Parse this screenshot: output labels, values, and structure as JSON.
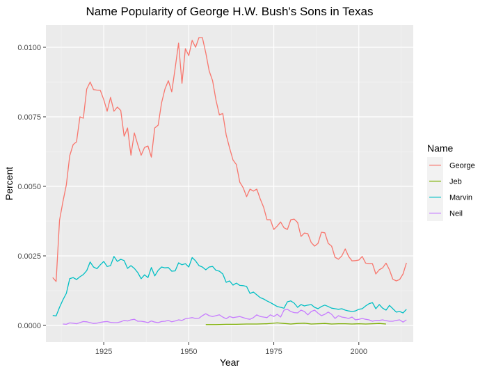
{
  "chart_data": {
    "type": "line",
    "title": "Name Popularity of George H.W. Bush's Sons in Texas",
    "xlabel": "Year",
    "ylabel": "Percent",
    "xlim": [
      1908,
      2016
    ],
    "ylim": [
      -0.0006,
      0.0108
    ],
    "x_ticks": [
      1925,
      1950,
      1975,
      2000
    ],
    "x_tick_labels": [
      "1925",
      "1950",
      "1975",
      "2000"
    ],
    "y_ticks": [
      0,
      0.0025,
      0.005,
      0.0075,
      0.01
    ],
    "y_tick_labels": [
      "0.0000",
      "0.0025",
      "0.0050",
      "0.0075",
      "0.0100"
    ],
    "grid": true,
    "legend_title": "Name",
    "legend_position": "right",
    "series": [
      {
        "name": "George",
        "color": "#F8766D",
        "x": [
          1910,
          1911,
          1912,
          1913,
          1914,
          1915,
          1916,
          1917,
          1918,
          1919,
          1920,
          1921,
          1922,
          1923,
          1924,
          1925,
          1926,
          1927,
          1928,
          1929,
          1930,
          1931,
          1932,
          1933,
          1934,
          1935,
          1936,
          1937,
          1938,
          1939,
          1940,
          1941,
          1942,
          1943,
          1944,
          1945,
          1946,
          1947,
          1948,
          1949,
          1950,
          1951,
          1952,
          1953,
          1954,
          1955,
          1956,
          1957,
          1958,
          1959,
          1960,
          1961,
          1962,
          1963,
          1964,
          1965,
          1966,
          1967,
          1968,
          1969,
          1970,
          1971,
          1972,
          1973,
          1974,
          1975,
          1976,
          1977,
          1978,
          1979,
          1980,
          1981,
          1982,
          1983,
          1984,
          1985,
          1986,
          1987,
          1988,
          1989,
          1990,
          1991,
          1992,
          1993,
          1994,
          1995,
          1996,
          1997,
          1998,
          1999,
          2000,
          2001,
          2002,
          2003,
          2004,
          2005,
          2006,
          2007,
          2008,
          2009,
          2010,
          2011,
          2012,
          2013,
          2014
        ],
        "values": [
          0.00172,
          0.00158,
          0.00378,
          0.00445,
          0.00505,
          0.0061,
          0.0065,
          0.0066,
          0.0075,
          0.00745,
          0.0085,
          0.00875,
          0.00848,
          0.00846,
          0.00845,
          0.00812,
          0.0077,
          0.0082,
          0.0077,
          0.00785,
          0.00773,
          0.0068,
          0.0071,
          0.00612,
          0.00692,
          0.0065,
          0.00612,
          0.0064,
          0.00645,
          0.00605,
          0.0071,
          0.0072,
          0.008,
          0.0085,
          0.0088,
          0.0084,
          0.00925,
          0.01015,
          0.0087,
          0.00995,
          0.0097,
          0.01025,
          0.01,
          0.01035,
          0.01035,
          0.0098,
          0.00915,
          0.0088,
          0.0081,
          0.00757,
          0.00762,
          0.00685,
          0.00638,
          0.00595,
          0.00578,
          0.00515,
          0.00495,
          0.00463,
          0.0049,
          0.00483,
          0.0049,
          0.00455,
          0.00425,
          0.0038,
          0.0038,
          0.00345,
          0.00357,
          0.00372,
          0.00351,
          0.00345,
          0.0038,
          0.00382,
          0.0037,
          0.0032,
          0.00332,
          0.0033,
          0.00298,
          0.00285,
          0.00295,
          0.00335,
          0.00333,
          0.00295,
          0.00285,
          0.00245,
          0.00238,
          0.0025,
          0.00275,
          0.00248,
          0.00232,
          0.00233,
          0.00235,
          0.00248,
          0.00224,
          0.00222,
          0.00222,
          0.00185,
          0.002,
          0.00207,
          0.00224,
          0.002,
          0.00166,
          0.0016,
          0.00165,
          0.00185,
          0.00225
        ]
      },
      {
        "name": "Jeb",
        "color": "#7CAE00",
        "x": [
          1955,
          1958,
          1961,
          1964,
          1967,
          1970,
          1973,
          1976,
          1978,
          1980,
          1982,
          1984,
          1986,
          1988,
          1990,
          1992,
          1994,
          1996,
          1998,
          2000,
          2002,
          2004,
          2006,
          2008
        ],
        "values": [
          3e-05,
          3e-05,
          4e-05,
          4e-05,
          5e-05,
          5e-05,
          6e-05,
          9e-05,
          7e-05,
          5e-05,
          7e-05,
          8e-05,
          5e-05,
          6e-05,
          7e-05,
          5e-05,
          6e-05,
          6e-05,
          5e-05,
          6e-05,
          5e-05,
          6e-05,
          7e-05,
          5e-05
        ]
      },
      {
        "name": "Marvin",
        "color": "#00BFC4",
        "x": [
          1910,
          1911,
          1912,
          1913,
          1914,
          1915,
          1916,
          1917,
          1918,
          1919,
          1920,
          1921,
          1922,
          1923,
          1924,
          1925,
          1926,
          1927,
          1928,
          1929,
          1930,
          1931,
          1932,
          1933,
          1934,
          1935,
          1936,
          1937,
          1938,
          1939,
          1940,
          1941,
          1942,
          1943,
          1944,
          1945,
          1946,
          1947,
          1948,
          1949,
          1950,
          1951,
          1952,
          1953,
          1954,
          1955,
          1956,
          1957,
          1958,
          1959,
          1960,
          1961,
          1962,
          1963,
          1964,
          1965,
          1966,
          1967,
          1968,
          1969,
          1970,
          1971,
          1972,
          1973,
          1974,
          1975,
          1976,
          1977,
          1978,
          1979,
          1980,
          1981,
          1982,
          1983,
          1984,
          1985,
          1986,
          1987,
          1988,
          1989,
          1990,
          1991,
          1992,
          1993,
          1994,
          1995,
          1996,
          1997,
          1998,
          1999,
          2000,
          2001,
          2002,
          2003,
          2004,
          2005,
          2006,
          2007,
          2008,
          2009,
          2010,
          2011,
          2012,
          2013,
          2014
        ],
        "values": [
          0.00036,
          0.00034,
          0.00065,
          0.00092,
          0.00115,
          0.00168,
          0.00172,
          0.00165,
          0.00175,
          0.00183,
          0.00197,
          0.00228,
          0.0021,
          0.00204,
          0.00218,
          0.0023,
          0.00212,
          0.00215,
          0.00248,
          0.0023,
          0.00238,
          0.00233,
          0.00205,
          0.00215,
          0.00205,
          0.0019,
          0.00168,
          0.00182,
          0.00172,
          0.00208,
          0.00178,
          0.00198,
          0.0021,
          0.00207,
          0.00208,
          0.00195,
          0.00196,
          0.00225,
          0.00218,
          0.00222,
          0.0021,
          0.00244,
          0.00232,
          0.00215,
          0.0021,
          0.002,
          0.0021,
          0.00212,
          0.00198,
          0.00195,
          0.00185,
          0.00155,
          0.0016,
          0.00145,
          0.00152,
          0.00144,
          0.00143,
          0.0014,
          0.00115,
          0.0012,
          0.0011,
          0.001,
          0.00095,
          0.00088,
          0.00082,
          0.00075,
          0.00068,
          0.00065,
          0.00062,
          0.00085,
          0.00088,
          0.0008,
          0.00065,
          0.00075,
          0.0007,
          0.00073,
          0.00075,
          0.00065,
          0.0006,
          0.00068,
          0.00073,
          0.00068,
          0.00062,
          0.0006,
          0.00058,
          0.0006,
          0.00055,
          0.00052,
          0.0005,
          0.00052,
          0.00058,
          0.0006,
          0.0007,
          0.00078,
          0.00082,
          0.0006,
          0.00075,
          0.00062,
          0.00055,
          0.00072,
          0.0006,
          0.00048,
          0.0005,
          0.00045,
          0.00058
        ]
      },
      {
        "name": "Neil",
        "color": "#C77CFF",
        "x": [
          1913,
          1914,
          1915,
          1916,
          1917,
          1918,
          1919,
          1920,
          1921,
          1922,
          1923,
          1924,
          1925,
          1926,
          1927,
          1928,
          1929,
          1930,
          1931,
          1932,
          1933,
          1934,
          1935,
          1936,
          1937,
          1938,
          1939,
          1940,
          1941,
          1942,
          1943,
          1944,
          1945,
          1946,
          1947,
          1948,
          1949,
          1950,
          1951,
          1952,
          1953,
          1954,
          1955,
          1956,
          1957,
          1958,
          1959,
          1960,
          1961,
          1962,
          1963,
          1964,
          1965,
          1966,
          1967,
          1968,
          1969,
          1970,
          1971,
          1972,
          1973,
          1974,
          1975,
          1976,
          1977,
          1978,
          1979,
          1980,
          1981,
          1982,
          1983,
          1984,
          1985,
          1986,
          1987,
          1988,
          1989,
          1990,
          1991,
          1992,
          1993,
          1994,
          1995,
          1996,
          1997,
          1998,
          1999,
          2000,
          2001,
          2002,
          2003,
          2004,
          2005,
          2006,
          2007,
          2008,
          2009,
          2010,
          2011,
          2012,
          2013,
          2014
        ],
        "values": [
          5e-05,
          4e-05,
          9e-05,
          8e-05,
          6e-05,
          0.0001,
          0.00014,
          0.00013,
          0.0001,
          7e-05,
          8e-05,
          0.00011,
          0.00013,
          0.00014,
          0.00011,
          0.0001,
          0.0001,
          0.00013,
          0.00018,
          0.00016,
          0.0002,
          0.00022,
          0.00015,
          0.00015,
          0.00013,
          0.0001,
          0.00016,
          0.00012,
          0.0001,
          0.00014,
          0.00015,
          0.00018,
          0.00013,
          0.00016,
          0.0002,
          0.00018,
          0.00024,
          0.00026,
          0.00028,
          0.00025,
          0.00026,
          0.00035,
          0.00042,
          0.00035,
          0.00032,
          0.00035,
          0.00038,
          0.0003,
          0.00024,
          0.00032,
          0.00028,
          0.0003,
          0.00032,
          0.00028,
          0.00024,
          0.00022,
          0.00028,
          0.00038,
          0.00032,
          0.0003,
          0.00028,
          0.00038,
          0.00032,
          0.0004,
          0.0003,
          0.00055,
          0.00058,
          0.0005,
          0.00046,
          0.00045,
          0.00055,
          0.0005,
          0.00038,
          0.0005,
          0.00055,
          0.00044,
          0.00035,
          0.0004,
          0.00048,
          0.0004,
          0.00025,
          0.00035,
          0.0003,
          0.00028,
          0.00025,
          0.0003,
          0.0002,
          0.00022,
          0.00025,
          0.00022,
          0.0002,
          0.00015,
          0.00018,
          0.00018,
          0.0002,
          0.00017,
          0.00015,
          0.00015,
          0.00018,
          0.0002,
          0.00012,
          0.0002
        ]
      }
    ]
  }
}
